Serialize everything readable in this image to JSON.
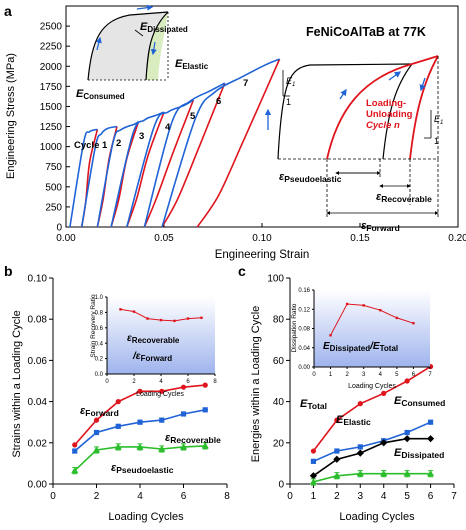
{
  "colors": {
    "red": "#e0141c",
    "blue": "#1f63d6",
    "green": "#2bbd2b",
    "black": "#000000",
    "inset_gradient_top": "#ffffff",
    "inset_gradient_bottom": "#9fb4ee"
  },
  "panels": {
    "a": {
      "letter": "a",
      "title": "FeNiCoAlTaB at 77K",
      "xlabel": "Engineering Strain",
      "ylabel": "Engineering Stress (MPa)",
      "xticks": [
        "0.00",
        "0.05",
        "0.10",
        "0.15",
        "0.20"
      ],
      "yticks": [
        "0",
        "250",
        "500",
        "750",
        "1000",
        "1250",
        "1500",
        "1750",
        "2000",
        "2250",
        "2500"
      ],
      "cycle_labels": [
        "Cycle 1",
        "2",
        "3",
        "4",
        "5",
        "6",
        "7"
      ],
      "inset_energy_labels": {
        "dissipated_sym": "E",
        "dissipated_sub": "Dissipated",
        "elastic_sym": "E",
        "elastic_sub": "Elastic",
        "consumed_sym": "E",
        "consumed_sub": "Consumed"
      },
      "schematic": {
        "loop_label": "Loading-Unloading Cycle n",
        "loop_label_line1": "Loading-",
        "loop_label_line2": "Unloading",
        "loop_label_line3": "Cycle n",
        "slope_num": "E",
        "slope_sub": "1",
        "slope_den": "1",
        "eps_pseudo_sym": "ε",
        "eps_pseudo_sub": "Pseudoelastic",
        "eps_recov_sym": "ε",
        "eps_recov_sub": "Recoverable",
        "eps_fwd_sym": "ε",
        "eps_fwd_sub": "Forward"
      }
    },
    "b": {
      "letter": "b",
      "xlabel": "Loading Cycles",
      "ylabel": "Strains within a Loading Cycle",
      "xticks": [
        "0",
        "2",
        "4",
        "6",
        "8"
      ],
      "yticks": [
        "0.00",
        "0.02",
        "0.04",
        "0.06",
        "0.08",
        "0.10"
      ],
      "series_labels": {
        "forward_sym": "ε",
        "forward_sub": "Forward",
        "recoverable_sym": "ε",
        "recoverable_sub": "Recoverable",
        "pseudo_sym": "ε",
        "pseudo_sub": "Pseudoelastic"
      },
      "inset": {
        "ylabel": "Strain Recovery Ratio",
        "xlabel": "Loading Cycles",
        "xticks": [
          "0",
          "2",
          "4",
          "6",
          "8"
        ],
        "yticks": [
          "0.0",
          "0.2",
          "0.4",
          "0.6",
          "0.8",
          "1.0"
        ],
        "num_sym": "ε",
        "num_sub": "Recoverable",
        "den_sym": "/ε",
        "den_sub": "Forward"
      }
    },
    "c": {
      "letter": "c",
      "xlabel": "Loading Cycles",
      "ylabel": "Energies within a Loading Cycle",
      "xticks": [
        "0",
        "1",
        "2",
        "3",
        "4",
        "5",
        "6",
        "7"
      ],
      "yticks": [
        "0",
        "20",
        "40",
        "60",
        "80",
        "100"
      ],
      "series_labels": {
        "total_sym": "E",
        "total_sub": "Total",
        "elastic_sym": "E",
        "elastic_sub": "Elastic",
        "consumed_sym": "E",
        "consumed_sub": "Consumed",
        "dissipated_sym": "E",
        "dissipated_sub": "Dissipated"
      },
      "inset": {
        "ylabel": "Dissipation Ratio",
        "xlabel": "Loading Cycles",
        "xticks": [
          "0",
          "1",
          "2",
          "3",
          "4",
          "5",
          "6",
          "7"
        ],
        "yticks": [
          "0.00",
          "0.04",
          "0.08",
          "0.12",
          "0.16"
        ],
        "num_sym": "E",
        "num_sub": "Dissipated",
        "den_sym": "/E",
        "den_sub": "Total"
      }
    }
  },
  "chart_data": [
    {
      "panel": "a",
      "type": "line",
      "title": "FeNiCoAlTaB at 77K",
      "xlabel": "Engineering Strain",
      "ylabel": "Engineering Stress (MPa)",
      "xlim": [
        0,
        0.2
      ],
      "ylim": [
        0,
        2750
      ],
      "loading_curves": [
        {
          "name": "Cycle 1",
          "color": "blue",
          "points": [
            [
              0.002,
              0
            ],
            [
              0.009,
              1050
            ],
            [
              0.012,
              1185
            ],
            [
              0.016,
              1215
            ]
          ]
        },
        {
          "name": "2",
          "color": "blue",
          "points": [
            [
              0.008,
              0
            ],
            [
              0.015,
              1000
            ],
            [
              0.018,
              1160
            ],
            [
              0.021,
              1225
            ],
            [
              0.026,
              1250
            ]
          ]
        },
        {
          "name": "3",
          "color": "blue",
          "points": [
            [
              0.016,
              0
            ],
            [
              0.024,
              1050
            ],
            [
              0.028,
              1210
            ],
            [
              0.035,
              1280
            ],
            [
              0.037,
              1310
            ]
          ]
        },
        {
          "name": "4",
          "color": "blue",
          "points": [
            [
              0.023,
              0
            ],
            [
              0.034,
              1150
            ],
            [
              0.04,
              1330
            ],
            [
              0.046,
              1390
            ],
            [
              0.05,
              1430
            ]
          ]
        },
        {
          "name": "5",
          "color": "blue",
          "points": [
            [
              0.031,
              0
            ],
            [
              0.045,
              1250
            ],
            [
              0.052,
              1430
            ],
            [
              0.06,
              1510
            ],
            [
              0.065,
              1580
            ]
          ]
        },
        {
          "name": "6",
          "color": "blue",
          "points": [
            [
              0.04,
              0
            ],
            [
              0.054,
              1300
            ],
            [
              0.063,
              1560
            ],
            [
              0.074,
              1700
            ],
            [
              0.081,
              1790
            ]
          ]
        },
        {
          "name": "7",
          "color": "blue",
          "points": [
            [
              0.049,
              0
            ],
            [
              0.066,
              1350
            ],
            [
              0.076,
              1680
            ],
            [
              0.09,
              1870
            ],
            [
              0.102,
              2020
            ],
            [
              0.109,
              2090
            ]
          ]
        }
      ],
      "unloading_curves": [
        {
          "name": "Cycle 1",
          "color": "red",
          "points": [
            [
              0.016,
              1215
            ],
            [
              0.012,
              800
            ],
            [
              0.01,
              300
            ],
            [
              0.008,
              0
            ]
          ]
        },
        {
          "name": "2",
          "color": "red",
          "points": [
            [
              0.026,
              1250
            ],
            [
              0.022,
              850
            ],
            [
              0.019,
              350
            ],
            [
              0.016,
              0
            ]
          ]
        },
        {
          "name": "3",
          "color": "red",
          "points": [
            [
              0.037,
              1310
            ],
            [
              0.031,
              850
            ],
            [
              0.027,
              350
            ],
            [
              0.023,
              0
            ]
          ]
        },
        {
          "name": "4",
          "color": "red",
          "points": [
            [
              0.05,
              1430
            ],
            [
              0.042,
              900
            ],
            [
              0.036,
              350
            ],
            [
              0.031,
              0
            ]
          ]
        },
        {
          "name": "5",
          "color": "red",
          "points": [
            [
              0.065,
              1580
            ],
            [
              0.055,
              950
            ],
            [
              0.046,
              350
            ],
            [
              0.04,
              0
            ]
          ]
        },
        {
          "name": "6",
          "color": "red",
          "points": [
            [
              0.081,
              1790
            ],
            [
              0.068,
              1000
            ],
            [
              0.057,
              350
            ],
            [
              0.049,
              0
            ]
          ]
        },
        {
          "name": "7",
          "color": "red",
          "points": [
            [
              0.109,
              2090
            ],
            [
              0.091,
              1100
            ],
            [
              0.078,
              400
            ],
            [
              0.067,
              0
            ]
          ]
        }
      ]
    },
    {
      "panel": "b",
      "type": "line",
      "xlabel": "Loading Cycles",
      "ylabel": "Strains within a Loading Cycle",
      "xlim": [
        0,
        8
      ],
      "ylim": [
        0,
        0.1
      ],
      "x": [
        1,
        2,
        3,
        4,
        5,
        6,
        7
      ],
      "series": [
        {
          "name": "εForward",
          "color": "red",
          "values": [
            0.019,
            0.031,
            0.04,
            0.045,
            0.045,
            0.047,
            0.048
          ]
        },
        {
          "name": "εRecoverable",
          "color": "blue",
          "values": [
            0.016,
            0.025,
            0.028,
            0.03,
            0.031,
            0.034,
            0.036
          ]
        },
        {
          "name": "εPseudoelastic",
          "color": "green",
          "values": [
            0.0065,
            0.0165,
            0.018,
            0.018,
            0.017,
            0.018,
            0.0185
          ],
          "error": [
            0.0015,
            0.0015,
            0.0015,
            0.0015,
            0.0015,
            0.0015,
            0.0015
          ]
        }
      ],
      "inset": {
        "type": "line",
        "xlabel": "Loading Cycles",
        "ylabel": "Strain Recovery Ratio",
        "xlim": [
          0,
          8
        ],
        "ylim": [
          0,
          1
        ],
        "x": [
          1,
          2,
          3,
          4,
          5,
          6,
          7
        ],
        "values": [
          0.84,
          0.81,
          0.72,
          0.7,
          0.69,
          0.72,
          0.73
        ]
      }
    },
    {
      "panel": "c",
      "type": "line",
      "xlabel": "Loading Cycles",
      "ylabel": "Energies within a Loading Cycle",
      "xlim": [
        0,
        7
      ],
      "ylim": [
        0,
        100
      ],
      "x": [
        1,
        2,
        3,
        4,
        5,
        6
      ],
      "series": [
        {
          "name": "ETotal",
          "color": "red",
          "values": [
            16,
            31,
            39,
            44,
            50,
            57
          ]
        },
        {
          "name": "EConsumed",
          "color": "blue",
          "values": [
            11,
            16,
            18,
            21,
            25,
            30
          ]
        },
        {
          "name": "EElastic",
          "color": "black",
          "values": [
            4,
            12,
            15,
            20,
            22,
            22
          ]
        },
        {
          "name": "EDissipated",
          "color": "green",
          "values": [
            1,
            4,
            5,
            5,
            5,
            5
          ],
          "error": [
            1.5,
            1.5,
            1.5,
            1.5,
            1.5,
            1.5
          ]
        }
      ],
      "inset": {
        "type": "line",
        "xlabel": "Loading Cycles",
        "ylabel": "Dissipation Ratio",
        "xlim": [
          0,
          7
        ],
        "ylim": [
          0,
          0.16
        ],
        "x": [
          1,
          2,
          3,
          4,
          5,
          6
        ],
        "values": [
          0.066,
          0.131,
          0.128,
          0.118,
          0.102,
          0.091
        ]
      }
    }
  ]
}
